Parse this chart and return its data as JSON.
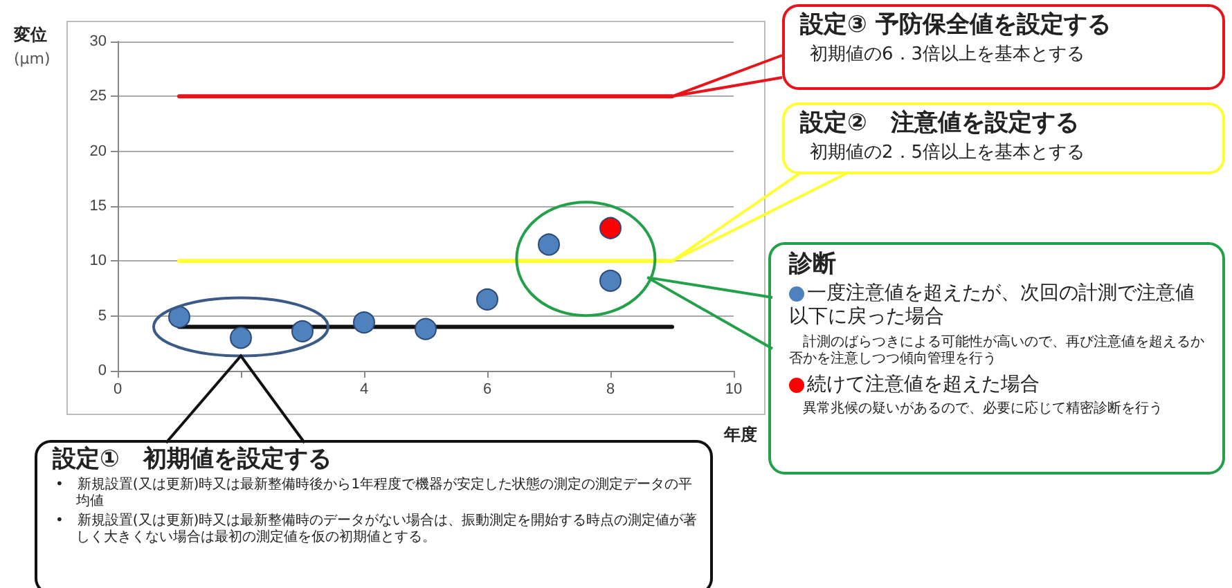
{
  "chart_data": {
    "type": "scatter",
    "xlabel": "年度",
    "ylabel": "変位 (μm)",
    "xlim": [
      0,
      10
    ],
    "xticks": [
      0,
      {
        "value": 2,
        "label": null
      },
      4,
      6,
      8,
      10
    ],
    "ylim": [
      0,
      30
    ],
    "yticks": [
      0,
      5,
      10,
      15,
      20,
      25,
      30
    ],
    "grid": "y",
    "marker": "circle",
    "series": [
      {
        "type": "line",
        "color": "#e8141c",
        "x": [
          1,
          9
        ],
        "values": [
          25,
          25
        ],
        "marker": "none"
      },
      {
        "type": "line",
        "color": "#ffff33",
        "x": [
          1,
          9
        ],
        "values": [
          10,
          10
        ],
        "marker": "none"
      },
      {
        "type": "line",
        "color": "#111111",
        "x": [
          1,
          9
        ],
        "values": [
          4,
          4
        ],
        "marker": "none"
      },
      {
        "color": "#4f81bd",
        "x": [
          1,
          2,
          3,
          4,
          5,
          6,
          7,
          8
        ],
        "values": [
          4.9,
          3.0,
          3.6,
          4.4,
          3.8,
          6.5,
          11.5,
          8.2
        ]
      },
      {
        "color": "#ff0000",
        "x": [
          8
        ],
        "values": [
          13
        ]
      }
    ],
    "annotations": [
      "設定③ 予防保全値を設定する",
      "初期値の6．3倍以上を基本とする",
      "設定②　注意値を設定する",
      "初期値の2．5倍以上を基本とする",
      "診断",
      "一度注意値を超えたが、次回の計測で注意値以下に戻った場合",
      "計測のばらつきによる可能性が高いので、再び注意値を超えるか否かを注意しつつ傾向管理を行う",
      "続けて注意値を超えた場合",
      "異常兆候の疑いがあるので、必要に応じて精密診断を行う",
      "設定①　初期値を設定する",
      "•　新規設置(又は更新)時又は最新整備時後から1年程度で機器が安定した状態の測定の測定データの平均値",
      "•　新規設置(又は更新)時又は最新整備時のデータがない場合は、振動測定を開始する時点の測定値が著しく大きくない場合は最初の測定値を仮の初期値とする。"
    ]
  }
}
